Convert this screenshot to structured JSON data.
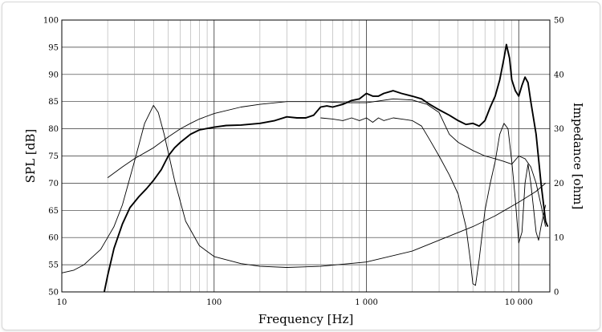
{
  "chart_data": {
    "type": "line",
    "x_scale": "log",
    "xlim": [
      10,
      16000
    ],
    "ylim_left": [
      50,
      100
    ],
    "ylim_right": [
      0,
      50
    ],
    "grid": true,
    "xlabel": "Frequency [Hz]",
    "ylabel_left": "SPL [dB]",
    "ylabel_right": "Impedance [ohm]",
    "x_ticks": [
      {
        "value": 10,
        "label": "10"
      },
      {
        "value": 100,
        "label": "100"
      },
      {
        "value": 1000,
        "label": "1 000"
      },
      {
        "value": 10000,
        "label": "10 000"
      }
    ],
    "y_ticks_left": [
      50,
      55,
      60,
      65,
      70,
      75,
      80,
      85,
      90,
      95,
      100
    ],
    "y_ticks_right": [
      0,
      10,
      20,
      30,
      40,
      50
    ],
    "colors": {
      "grid": "#666666",
      "curves": "#000000"
    },
    "series": [
      {
        "axis": "left",
        "style": "bold",
        "points": [
          [
            19,
            50
          ],
          [
            20,
            53
          ],
          [
            22,
            58
          ],
          [
            25,
            62.5
          ],
          [
            28,
            65.5
          ],
          [
            32,
            67.5
          ],
          [
            36,
            69
          ],
          [
            40,
            70.5
          ],
          [
            45,
            72.5
          ],
          [
            50,
            75
          ],
          [
            55,
            76.5
          ],
          [
            60,
            77.5
          ],
          [
            70,
            79
          ],
          [
            80,
            79.8
          ],
          [
            100,
            80.3
          ],
          [
            120,
            80.6
          ],
          [
            150,
            80.7
          ],
          [
            200,
            81
          ],
          [
            250,
            81.5
          ],
          [
            300,
            82.2
          ],
          [
            350,
            82
          ],
          [
            400,
            82
          ],
          [
            450,
            82.5
          ],
          [
            500,
            84
          ],
          [
            550,
            84.2
          ],
          [
            600,
            84
          ],
          [
            700,
            84.5
          ],
          [
            800,
            85.2
          ],
          [
            900,
            85.5
          ],
          [
            1000,
            86.5
          ],
          [
            1100,
            86
          ],
          [
            1200,
            86
          ],
          [
            1300,
            86.5
          ],
          [
            1500,
            87
          ],
          [
            1700,
            86.5
          ],
          [
            2000,
            86
          ],
          [
            2300,
            85.5
          ],
          [
            2600,
            84.5
          ],
          [
            3000,
            83.5
          ],
          [
            3500,
            82.5
          ],
          [
            4000,
            81.5
          ],
          [
            4500,
            80.8
          ],
          [
            5000,
            81
          ],
          [
            5500,
            80.5
          ],
          [
            6000,
            81.5
          ],
          [
            6500,
            84
          ],
          [
            7000,
            86
          ],
          [
            7500,
            89
          ],
          [
            8000,
            93
          ],
          [
            8300,
            95.5
          ],
          [
            8700,
            93
          ],
          [
            9000,
            89
          ],
          [
            9500,
            87
          ],
          [
            10000,
            86
          ],
          [
            10500,
            88
          ],
          [
            11000,
            89.5
          ],
          [
            11500,
            88.5
          ],
          [
            12000,
            85
          ],
          [
            13000,
            79
          ],
          [
            14000,
            70
          ],
          [
            15000,
            63
          ],
          [
            15500,
            62
          ]
        ]
      },
      {
        "axis": "left",
        "style": "thin",
        "points": [
          [
            20,
            71
          ],
          [
            25,
            73
          ],
          [
            30,
            74.5
          ],
          [
            40,
            76.5
          ],
          [
            50,
            78.5
          ],
          [
            60,
            80
          ],
          [
            70,
            81
          ],
          [
            80,
            81.8
          ],
          [
            100,
            82.8
          ],
          [
            150,
            84
          ],
          [
            200,
            84.5
          ],
          [
            300,
            85
          ],
          [
            500,
            85
          ],
          [
            700,
            84.8
          ],
          [
            1000,
            84.8
          ],
          [
            1500,
            85.5
          ],
          [
            2000,
            85.3
          ],
          [
            2500,
            84.5
          ],
          [
            3000,
            83
          ],
          [
            3500,
            79
          ],
          [
            4000,
            77.5
          ],
          [
            5000,
            76
          ],
          [
            6000,
            75
          ],
          [
            7000,
            74.5
          ],
          [
            8000,
            74
          ],
          [
            9000,
            73.5
          ],
          [
            10000,
            75
          ],
          [
            11000,
            74.5
          ],
          [
            12000,
            73
          ],
          [
            13000,
            70
          ],
          [
            14000,
            66
          ],
          [
            15000,
            62
          ]
        ]
      },
      {
        "axis": "left",
        "style": "thin",
        "points": [
          [
            500,
            82
          ],
          [
            600,
            81.8
          ],
          [
            700,
            81.5
          ],
          [
            800,
            82
          ],
          [
            900,
            81.5
          ],
          [
            1000,
            82
          ],
          [
            1100,
            81.2
          ],
          [
            1200,
            82
          ],
          [
            1300,
            81.5
          ],
          [
            1500,
            82
          ],
          [
            1700,
            81.8
          ],
          [
            2000,
            81.5
          ],
          [
            2300,
            80.5
          ],
          [
            2600,
            78
          ],
          [
            3000,
            75
          ],
          [
            3500,
            71.5
          ],
          [
            4000,
            68
          ],
          [
            4500,
            62
          ],
          [
            4800,
            56
          ],
          [
            5000,
            51.5
          ],
          [
            5200,
            51.2
          ],
          [
            5500,
            56
          ],
          [
            6000,
            65
          ],
          [
            6500,
            70
          ],
          [
            7000,
            74
          ],
          [
            7500,
            79
          ],
          [
            8000,
            81
          ],
          [
            8500,
            80
          ],
          [
            9000,
            74
          ],
          [
            9500,
            67
          ],
          [
            10000,
            59
          ],
          [
            10500,
            61
          ],
          [
            11000,
            70
          ],
          [
            11500,
            73.5
          ],
          [
            12000,
            70
          ],
          [
            13000,
            61
          ],
          [
            13500,
            59.5
          ],
          [
            14000,
            62
          ],
          [
            15000,
            66
          ]
        ]
      },
      {
        "axis": "right",
        "style": "thin",
        "points": [
          [
            10,
            3.5
          ],
          [
            12,
            4
          ],
          [
            14,
            5
          ],
          [
            16,
            6.5
          ],
          [
            18,
            7.8
          ],
          [
            20,
            10
          ],
          [
            22,
            12
          ],
          [
            25,
            16
          ],
          [
            30,
            24
          ],
          [
            35,
            31
          ],
          [
            40,
            34.3
          ],
          [
            43,
            33
          ],
          [
            47,
            29
          ],
          [
            55,
            20.5
          ],
          [
            65,
            13
          ],
          [
            80,
            8.5
          ],
          [
            100,
            6.5
          ],
          [
            150,
            5.2
          ],
          [
            200,
            4.7
          ],
          [
            300,
            4.5
          ],
          [
            500,
            4.7
          ],
          [
            1000,
            5.5
          ],
          [
            2000,
            7.5
          ],
          [
            3000,
            9.5
          ],
          [
            5000,
            12
          ],
          [
            7000,
            14
          ],
          [
            10000,
            16.5
          ],
          [
            13000,
            18.5
          ],
          [
            15000,
            20
          ]
        ]
      }
    ]
  }
}
